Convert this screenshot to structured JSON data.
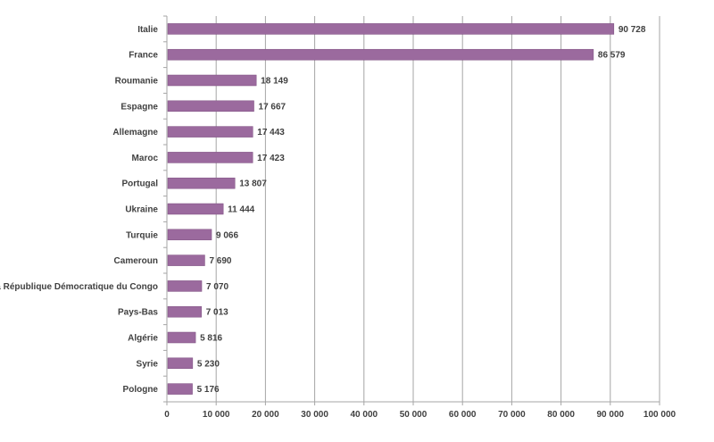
{
  "chart_data": {
    "type": "bar",
    "orientation": "horizontal",
    "title": "",
    "xlabel": "",
    "ylabel": "",
    "categories": [
      "Italie",
      "France",
      "Roumanie",
      "Espagne",
      "Allemagne",
      "Maroc",
      "Portugal",
      "Ukraine",
      "Turquie",
      "Cameroun",
      "La République Démocratique du Congo",
      "Pays-Bas",
      "Algérie",
      "Syrie",
      "Pologne"
    ],
    "values": [
      90728,
      86579,
      18149,
      17667,
      17443,
      17423,
      13807,
      11444,
      9066,
      7690,
      7070,
      7013,
      5816,
      5230,
      5176
    ],
    "value_labels": [
      "90 728",
      "86 579",
      "18 149",
      "17 667",
      "17 443",
      "17 423",
      "13 807",
      "11 444",
      "9 066",
      "7 690",
      "7 070",
      "7 013",
      "5 816",
      "5 230",
      "5 176"
    ],
    "xlim": [
      0,
      100000
    ],
    "x_ticks": [
      0,
      10000,
      20000,
      30000,
      40000,
      50000,
      60000,
      70000,
      80000,
      90000,
      100000
    ],
    "x_tick_labels": [
      "0",
      "10 000",
      "20 000",
      "30 000",
      "40 000",
      "50 000",
      "60 000",
      "70 000",
      "80 000",
      "90 000",
      "100 000"
    ],
    "grid": "vertical",
    "legend": "none",
    "colors": {
      "bar": "#9b6a9e",
      "bar_edge": "#7d4f80",
      "grid": "#a6a6a6",
      "axis": "#a6a6a6",
      "text": "#404040"
    }
  }
}
